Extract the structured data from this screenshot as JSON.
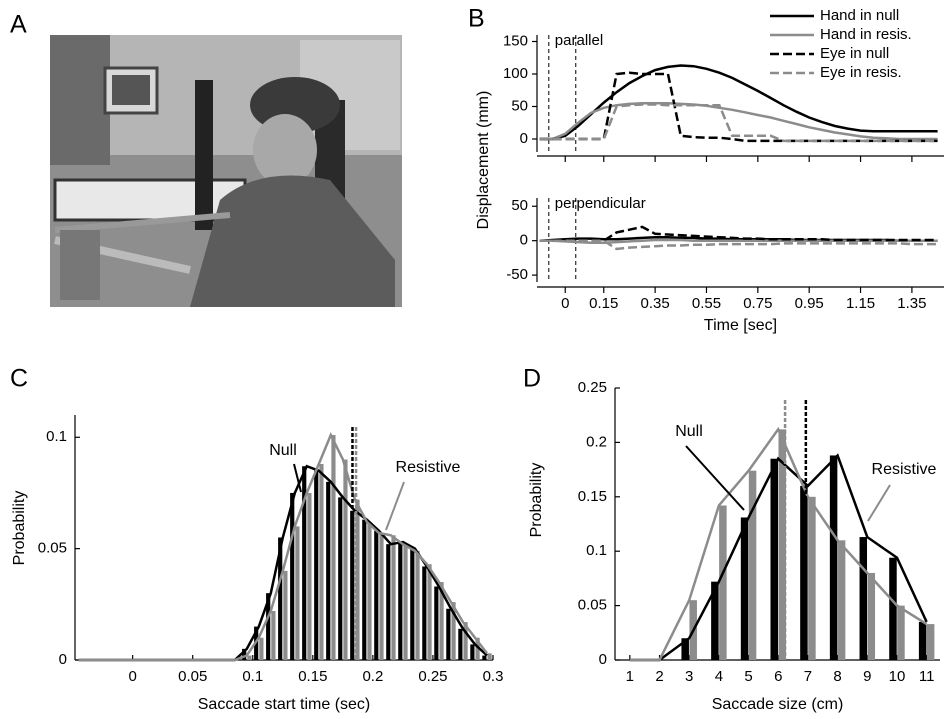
{
  "figure": {
    "photo_label": "A"
  },
  "chart_data": [
    {
      "type": "multi_line",
      "panel": "B",
      "xlabel": "Time [sec]",
      "ylabel": "Displacement (mm)",
      "x": [
        -0.1,
        -0.05,
        0,
        0.05,
        0.1,
        0.15,
        0.2,
        0.25,
        0.3,
        0.35,
        0.4,
        0.45,
        0.5,
        0.55,
        0.6,
        0.65,
        0.7,
        0.75,
        0.8,
        0.85,
        0.9,
        0.95,
        1.0,
        1.05,
        1.1,
        1.15,
        1.2,
        1.25,
        1.3,
        1.35,
        1.4,
        1.45
      ],
      "xlim": [
        -0.11,
        1.475
      ],
      "xticks": [
        0,
        0.15,
        0.35,
        0.55,
        0.75,
        0.95,
        1.15,
        1.35
      ],
      "markers": [
        -0.064,
        0.041
      ],
      "legend": "upper right",
      "series": [
        {
          "name": "Hand in null",
          "color": "#000000",
          "dashed": false
        },
        {
          "name": "Hand in resis.",
          "color": "#8c8c8c",
          "dashed": false
        },
        {
          "name": "Eye in null",
          "color": "#000000",
          "dashed": true
        },
        {
          "name": "Eye in resis.",
          "color": "#8c8c8c",
          "dashed": true
        }
      ],
      "subplots": [
        {
          "annotation": "parallel",
          "ylim": [
            -20,
            160
          ],
          "yticks": [
            0,
            50,
            100,
            150
          ],
          "values": [
            [
              0,
              0,
              5,
              20,
              38,
              56,
              72,
              86,
              97,
              106,
              111,
              113,
              112,
              108,
              102,
              94,
              84,
              74,
              63,
              52,
              42,
              33,
              26,
              20,
              16,
              13,
              12,
              12,
              12,
              12,
              12,
              12
            ],
            [
              0,
              0,
              8,
              25,
              40,
              48,
              52,
              54,
              55,
              55,
              55,
              54,
              53,
              51,
              48,
              45,
              41,
              37,
              33,
              28,
              23,
              18,
              14,
              10,
              7,
              4,
              2,
              1,
              0,
              0,
              0,
              0
            ],
            [
              0,
              0,
              0,
              0,
              0,
              0,
              100,
              102,
              100,
              100,
              100,
              5,
              3,
              2,
              2,
              0,
              -3,
              -3,
              -3,
              -3,
              -3,
              -3,
              -3,
              -3,
              -3,
              -3,
              -3,
              -3,
              -3,
              -3,
              -3,
              -3
            ],
            [
              0,
              0,
              0,
              0,
              0,
              0,
              50,
              52,
              53,
              53,
              52,
              52,
              52,
              52,
              52,
              5,
              5,
              5,
              5,
              -3,
              -3,
              -3,
              -3,
              -3,
              -3,
              -3,
              -3,
              -3,
              -3,
              -3,
              -3,
              -3
            ]
          ]
        },
        {
          "annotation": "perpendicular",
          "ylim": [
            -60,
            62
          ],
          "yticks": [
            -50,
            0,
            50
          ],
          "values": [
            [
              0,
              1,
              2,
              3,
              3,
              2,
              2,
              3,
              4,
              5,
              5,
              4,
              4,
              3,
              3,
              2,
              2,
              2,
              2,
              2,
              1,
              1,
              1,
              1,
              1,
              1,
              1,
              1,
              0,
              0,
              0,
              0
            ],
            [
              0,
              0,
              -1,
              -2,
              -3,
              -3,
              -2,
              -1,
              0,
              1,
              1,
              1,
              0,
              0,
              0,
              0,
              0,
              0,
              0,
              0,
              0,
              0,
              0,
              0,
              0,
              0,
              0,
              0,
              0,
              0,
              0,
              0
            ],
            [
              0,
              0,
              0,
              0,
              0,
              0,
              12,
              16,
              20,
              10,
              9,
              8,
              7,
              6,
              5,
              4,
              3,
              3,
              2,
              2,
              2,
              2,
              2,
              1,
              1,
              1,
              1,
              1,
              1,
              1,
              1,
              1
            ],
            [
              0,
              0,
              0,
              0,
              0,
              0,
              -12,
              -10,
              -9,
              -8,
              -7,
              -7,
              -6,
              -6,
              -5,
              -5,
              -5,
              -5,
              -5,
              -4,
              -4,
              -4,
              -4,
              -4,
              -4,
              -4,
              -4,
              -4,
              -4,
              -5,
              -5,
              -5
            ]
          ]
        }
      ]
    },
    {
      "type": "bar_line",
      "panel": "C",
      "xlabel": "Saccade start time (sec)",
      "ylabel": "Probability",
      "x": [
        -0.045,
        0.085,
        0.095,
        0.105,
        0.115,
        0.125,
        0.135,
        0.145,
        0.155,
        0.165,
        0.175,
        0.185,
        0.195,
        0.205,
        0.215,
        0.225,
        0.235,
        0.245,
        0.255,
        0.265,
        0.275,
        0.285,
        0.295
      ],
      "xlim": [
        -0.048,
        0.3
      ],
      "xticks": [
        0,
        0.05,
        0.1,
        0.15,
        0.2,
        0.25,
        0.3
      ],
      "ylim": [
        0,
        0.11
      ],
      "yticks": [
        0,
        0.05,
        0.1
      ],
      "series": [
        {
          "name": "Null",
          "color": "#000000",
          "mean": 0.183,
          "values": [
            0,
            0,
            0.005,
            0.015,
            0.03,
            0.055,
            0.075,
            0.087,
            0.085,
            0.08,
            0.073,
            0.067,
            0.063,
            0.058,
            0.052,
            0.053,
            0.05,
            0.042,
            0.033,
            0.023,
            0.014,
            0.007,
            0.002
          ]
        },
        {
          "name": "Resistive",
          "color": "#8c8c8c",
          "mean": 0.186,
          "values": [
            0,
            0,
            0.002,
            0.01,
            0.022,
            0.04,
            0.06,
            0.075,
            0.088,
            0.101,
            0.09,
            0.072,
            0.062,
            0.057,
            0.056,
            0.052,
            0.049,
            0.043,
            0.035,
            0.026,
            0.017,
            0.01,
            0.003
          ]
        }
      ]
    },
    {
      "type": "bar_line",
      "panel": "D",
      "xlabel": "Saccade size (cm)",
      "ylabel": "Probability",
      "x": [
        1,
        2,
        3,
        4,
        5,
        6,
        7,
        8,
        9,
        10,
        11
      ],
      "xlim": [
        0.5,
        11.45
      ],
      "xticks": [
        1,
        2,
        3,
        4,
        5,
        6,
        7,
        8,
        9,
        10,
        11
      ],
      "ylim": [
        0,
        0.25
      ],
      "yticks": [
        0,
        0.05,
        0.1,
        0.15,
        0.2,
        0.25
      ],
      "series": [
        {
          "name": "Null",
          "color": "#000000",
          "mean": 6.93,
          "values": [
            0,
            0,
            0.02,
            0.072,
            0.131,
            0.185,
            0.16,
            0.188,
            0.113,
            0.094,
            0.035
          ]
        },
        {
          "name": "Resistive",
          "color": "#8c8c8c",
          "mean": 6.23,
          "values": [
            0,
            0,
            0.055,
            0.142,
            0.174,
            0.212,
            0.15,
            0.11,
            0.08,
            0.05,
            0.033
          ]
        }
      ]
    }
  ]
}
